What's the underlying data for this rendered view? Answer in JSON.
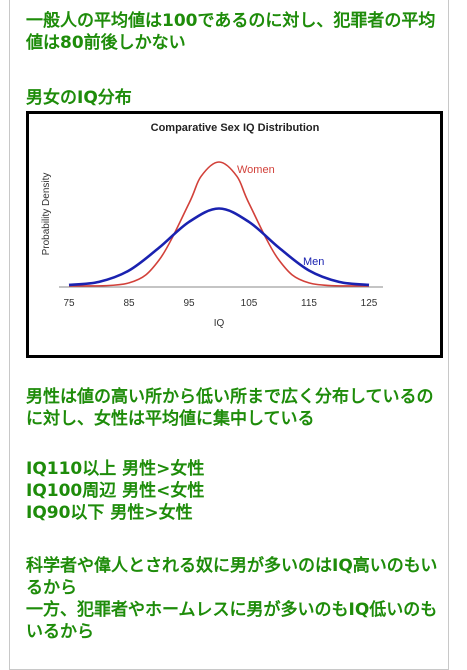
{
  "intro_text": "一般人の平均値は100であるのに対し、犯罪者の平均値は80前後しかない",
  "distribution_heading": "男女のIQ分布",
  "spread_text": "男性は値の高い所から低い所まで広く分布しているのに対し、女性は平均値に集中している",
  "comparisons": [
    "IQ110以上 男性>女性",
    "IQ100周辺 男性<女性",
    "IQ90以下 男性>女性"
  ],
  "conclusion_lines": [
    "科学者や偉人とされる奴に男が多いのはIQ高いのもいるから",
    "一方、犯罪者やホームレスに男が多いのもIQ低いのもいるから"
  ],
  "colors": {
    "text_green": "#1e8c0a",
    "women": "#d2413a",
    "men": "#1a22b0"
  },
  "chart_data": {
    "type": "line",
    "title": "Comparative Sex IQ Distribution",
    "xlabel": "IQ",
    "ylabel": "Probability Density",
    "xlim": [
      75,
      125
    ],
    "xticks": [
      "75",
      "85",
      "95",
      "105",
      "115",
      "125"
    ],
    "series": [
      {
        "name": "Women",
        "color": "#d2413a",
        "x": [
          75,
          85,
          90,
          95,
          97,
          100,
          103,
          105,
          110,
          115,
          125
        ],
        "y": [
          0.0,
          0.003,
          0.025,
          0.08,
          0.106,
          0.12,
          0.106,
          0.08,
          0.025,
          0.003,
          0.0
        ]
      },
      {
        "name": "Men",
        "color": "#1a22b0",
        "x": [
          75,
          80,
          85,
          90,
          95,
          100,
          105,
          110,
          115,
          120,
          125
        ],
        "y": [
          0.001,
          0.004,
          0.015,
          0.037,
          0.062,
          0.075,
          0.062,
          0.037,
          0.015,
          0.004,
          0.001
        ]
      }
    ]
  }
}
